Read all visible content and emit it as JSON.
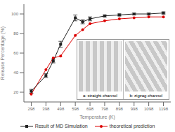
{
  "chart_data": {
    "type": "line",
    "xlabel": "Temperature (K)",
    "ylabel": "Release Percentage (%)",
    "x": [
      298,
      398,
      448,
      498,
      598,
      648,
      698,
      798,
      898,
      998,
      1098,
      1198
    ],
    "xlim": [
      248,
      1248
    ],
    "ylim": [
      10,
      110
    ],
    "xticks": [
      298,
      398,
      498,
      598,
      698,
      798,
      898,
      998,
      1098,
      1198
    ],
    "yticks": [
      20,
      40,
      60,
      80,
      100
    ],
    "grid": false,
    "legend": "bottom",
    "series": [
      {
        "name": "Result of MD Simulation",
        "color": "#222222",
        "marker": "square",
        "values": [
          21,
          37,
          52,
          69,
          96,
          92,
          95,
          98,
          99,
          100,
          100,
          101
        ],
        "errors": [
          2,
          2,
          2,
          3,
          3,
          2,
          2,
          1,
          1,
          1,
          1,
          1
        ]
      },
      {
        "name": "theoretical prediction",
        "color": "#dd0000",
        "marker": "circle",
        "values": [
          18,
          43,
          55,
          57,
          78,
          84,
          90,
          93,
          95,
          96,
          97,
          97
        ]
      }
    ],
    "annotations": [
      "a: straight channel",
      "b: zigzag channel"
    ]
  }
}
